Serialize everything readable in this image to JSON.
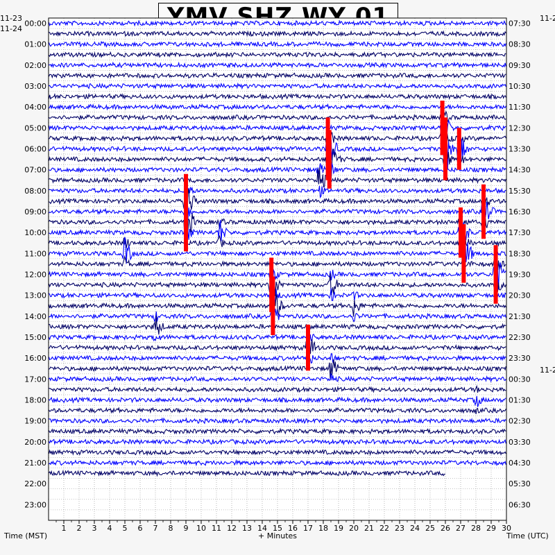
{
  "title": "YMV SHZ WY 01",
  "date_labels": {
    "left_prev": "11-23",
    "left_current": "11-24",
    "right_top": "11-2",
    "right_mid": "11-2"
  },
  "chart_data": {
    "type": "line",
    "title": "YMV SHZ WY 01",
    "xlabel": "+ Minutes",
    "ylabel_left": "Time (MST)",
    "ylabel_right": "Time (UTC)",
    "xlim": [
      0,
      30
    ],
    "x_ticks": [
      "1",
      "2",
      "3",
      "4",
      "5",
      "6",
      "7",
      "8",
      "9",
      "10",
      "11",
      "12",
      "13",
      "14",
      "15",
      "16",
      "17",
      "18",
      "19",
      "20",
      "21",
      "22",
      "23",
      "24",
      "25",
      "26",
      "27",
      "28",
      "29",
      "30"
    ],
    "left_hour_labels": [
      "00:00",
      "01:00",
      "02:00",
      "03:00",
      "04:00",
      "05:00",
      "06:00",
      "07:00",
      "08:00",
      "09:00",
      "10:00",
      "11:00",
      "12:00",
      "13:00",
      "14:00",
      "15:00",
      "16:00",
      "17:00",
      "18:00",
      "19:00",
      "20:00",
      "21:00",
      "22:00",
      "23:00"
    ],
    "right_hour_labels": [
      "07:30",
      "08:30",
      "09:30",
      "10:30",
      "11:30",
      "12:30",
      "13:30",
      "14:30",
      "15:30",
      "16:30",
      "17:30",
      "18:30",
      "19:30",
      "20:30",
      "21:30",
      "22:30",
      "23:30",
      "00:30",
      "01:30",
      "02:30",
      "03:30",
      "04:30",
      "05:30",
      "06:30"
    ],
    "rows_per_hour": 2,
    "total_rows": 48,
    "data_end_minutes_last_row": 26,
    "rows_with_data": 44,
    "colors": {
      "dark": "#000066",
      "blue": "#0000ff",
      "clip": "#ff0000",
      "grid": "#888888"
    },
    "grid": true,
    "events": [
      {
        "row": 12,
        "minute": 18.3,
        "amplitude": 3.0,
        "clipped": true
      },
      {
        "row": 13,
        "minute": 18.4,
        "amplitude": 2.8,
        "clipped": true
      },
      {
        "row": 15,
        "minute": 17.7,
        "amplitude": 2.0,
        "clipped": false
      },
      {
        "row": 10,
        "minute": 25.8,
        "amplitude": 2.6,
        "clipped": true
      },
      {
        "row": 12,
        "minute": 26.0,
        "amplitude": 3.0,
        "clipped": true
      },
      {
        "row": 12,
        "minute": 26.9,
        "amplitude": 2.0,
        "clipped": true
      },
      {
        "row": 17,
        "minute": 9.0,
        "amplitude": 2.6,
        "clipped": true
      },
      {
        "row": 19,
        "minute": 9.0,
        "amplitude": 2.8,
        "clipped": true
      },
      {
        "row": 18,
        "minute": 28.5,
        "amplitude": 2.6,
        "clipped": true
      },
      {
        "row": 20,
        "minute": 27.0,
        "amplitude": 2.4,
        "clipped": true
      },
      {
        "row": 22,
        "minute": 27.2,
        "amplitude": 2.8,
        "clipped": true
      },
      {
        "row": 24,
        "minute": 29.3,
        "amplitude": 2.8,
        "clipped": true
      },
      {
        "row": 25,
        "minute": 14.6,
        "amplitude": 2.6,
        "clipped": true
      },
      {
        "row": 27,
        "minute": 14.7,
        "amplitude": 2.8,
        "clipped": true
      },
      {
        "row": 20,
        "minute": 11.2,
        "amplitude": 1.6,
        "clipped": false
      },
      {
        "row": 22,
        "minute": 5.0,
        "amplitude": 1.8,
        "clipped": false
      },
      {
        "row": 25,
        "minute": 18.5,
        "amplitude": 1.6,
        "clipped": false
      },
      {
        "row": 27,
        "minute": 20.0,
        "amplitude": 1.4,
        "clipped": false
      },
      {
        "row": 29,
        "minute": 7.0,
        "amplitude": 1.6,
        "clipped": false
      },
      {
        "row": 31,
        "minute": 17.0,
        "amplitude": 2.2,
        "clipped": true
      },
      {
        "row": 33,
        "minute": 18.5,
        "amplitude": 1.6,
        "clipped": false
      },
      {
        "row": 36,
        "minute": 28.0,
        "amplitude": 1.0,
        "clipped": false
      }
    ]
  }
}
